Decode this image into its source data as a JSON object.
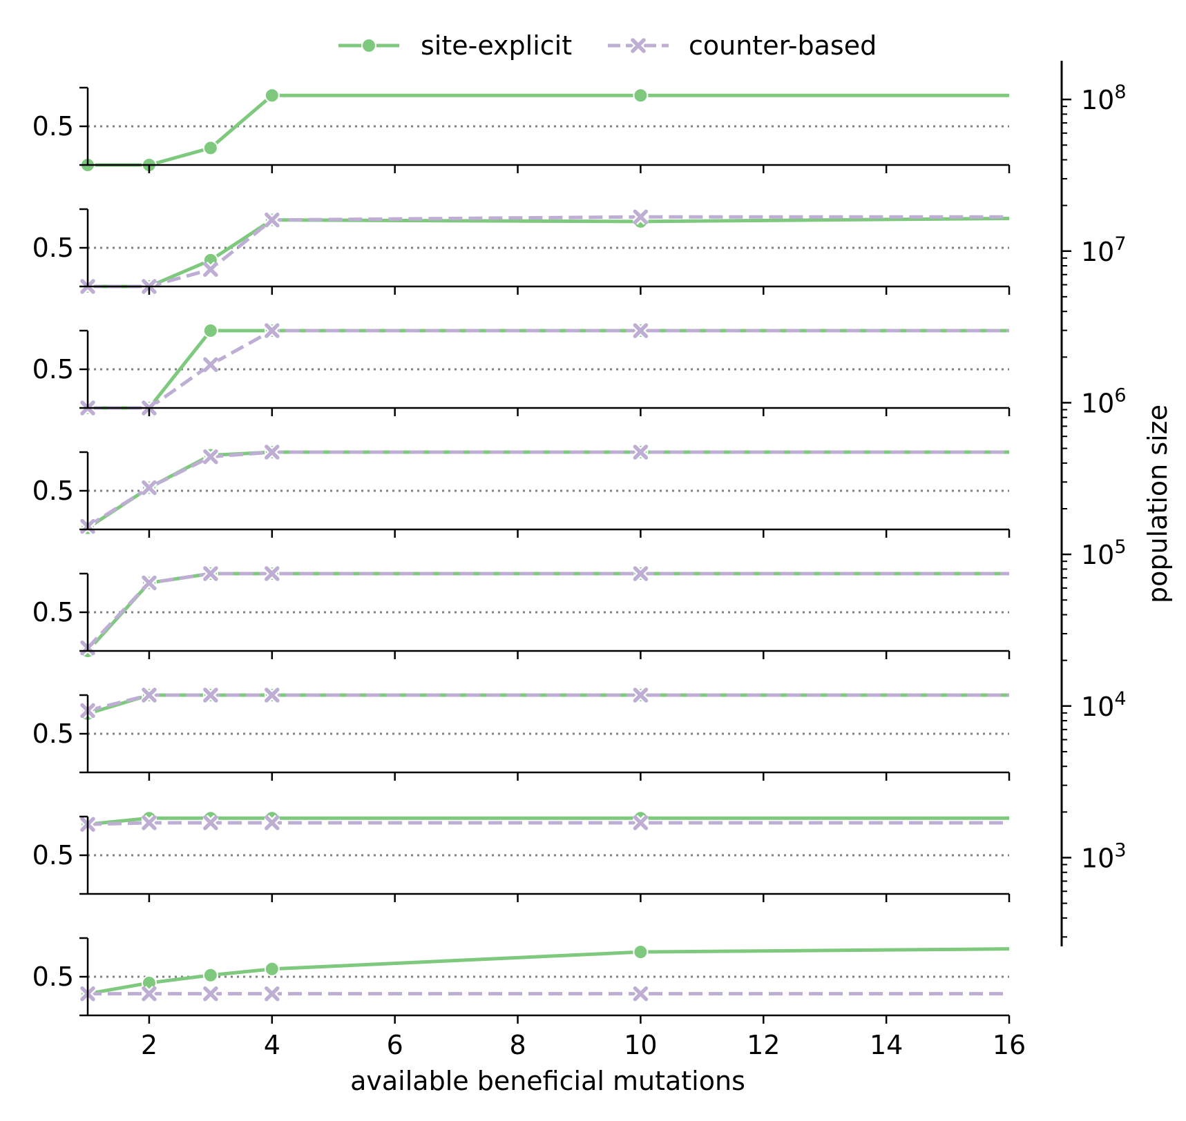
{
  "chart_data": {
    "type": "line",
    "legend": {
      "placement": "top-center",
      "entries": [
        {
          "label": "site-explicit",
          "color": "#7fc97f",
          "marker": "circle",
          "dash": "solid"
        },
        {
          "label": "counter-based",
          "color": "#beaed4",
          "marker": "x",
          "dash": "dashed"
        }
      ]
    },
    "xlabel": "available beneficial mutations",
    "x_ticks": [
      2,
      4,
      6,
      8,
      10,
      12,
      14,
      16
    ],
    "x_tick_labels": [
      "2",
      "4",
      "6",
      "8",
      10,
      12,
      14,
      16
    ],
    "xlim": [
      1,
      16
    ],
    "panel_ylim": [
      0.25,
      0.75
    ],
    "panel_ytick": 0.5,
    "panel_ytick_label": "0.5",
    "reference_line": 0.5,
    "x": [
      1,
      2,
      3,
      4,
      10,
      16
    ],
    "panels": [
      {
        "series": [
          {
            "name": "site-explicit",
            "values": [
              0.25,
              0.25,
              0.36,
              0.7,
              0.7,
              0.7
            ],
            "markers": [
              true,
              true,
              true,
              true,
              true,
              false
            ]
          },
          {
            "name": "counter-based",
            "values": [],
            "markers": []
          }
        ]
      },
      {
        "series": [
          {
            "name": "site-explicit",
            "values": [
              0.25,
              0.25,
              0.42,
              0.68,
              0.67,
              0.69
            ],
            "markers": [
              true,
              true,
              true,
              true,
              true,
              false
            ]
          },
          {
            "name": "counter-based",
            "values": [
              0.25,
              0.25,
              0.36,
              0.68,
              0.7,
              0.7
            ],
            "markers": [
              true,
              true,
              true,
              true,
              true,
              false
            ]
          }
        ]
      },
      {
        "series": [
          {
            "name": "site-explicit",
            "values": [
              0.25,
              0.25,
              0.75,
              0.75,
              0.75,
              0.75
            ],
            "markers": [
              true,
              true,
              true,
              true,
              true,
              false
            ]
          },
          {
            "name": "counter-based",
            "values": [
              0.25,
              0.25,
              0.53,
              0.75,
              0.75,
              0.75
            ],
            "markers": [
              true,
              true,
              true,
              true,
              true,
              false
            ]
          }
        ]
      },
      {
        "series": [
          {
            "name": "site-explicit",
            "values": [
              0.26,
              0.52,
              0.73,
              0.75,
              0.75,
              0.75
            ],
            "markers": [
              true,
              true,
              true,
              true,
              true,
              false
            ]
          },
          {
            "name": "counter-based",
            "values": [
              0.27,
              0.52,
              0.72,
              0.75,
              0.75,
              0.75
            ],
            "markers": [
              true,
              true,
              true,
              true,
              true,
              false
            ]
          }
        ]
      },
      {
        "series": [
          {
            "name": "site-explicit",
            "values": [
              0.25,
              0.69,
              0.75,
              0.75,
              0.75,
              0.75
            ],
            "markers": [
              true,
              true,
              true,
              true,
              true,
              false
            ]
          },
          {
            "name": "counter-based",
            "values": [
              0.27,
              0.69,
              0.75,
              0.75,
              0.75,
              0.75
            ],
            "markers": [
              true,
              true,
              true,
              true,
              true,
              false
            ]
          }
        ]
      },
      {
        "series": [
          {
            "name": "site-explicit",
            "values": [
              0.63,
              0.75,
              0.75,
              0.75,
              0.75,
              0.75
            ],
            "markers": [
              true,
              true,
              true,
              true,
              true,
              false
            ]
          },
          {
            "name": "counter-based",
            "values": [
              0.65,
              0.75,
              0.75,
              0.75,
              0.75,
              0.75
            ],
            "markers": [
              true,
              true,
              true,
              true,
              true,
              false
            ]
          }
        ]
      },
      {
        "series": [
          {
            "name": "site-explicit",
            "values": [
              0.7,
              0.74,
              0.74,
              0.74,
              0.74,
              0.74
            ],
            "markers": [
              true,
              true,
              true,
              true,
              true,
              false
            ]
          },
          {
            "name": "counter-based",
            "values": [
              0.7,
              0.71,
              0.71,
              0.71,
              0.71,
              0.71
            ],
            "markers": [
              true,
              true,
              true,
              true,
              true,
              false
            ]
          }
        ]
      },
      {
        "series": [
          {
            "name": "site-explicit",
            "values": [
              0.39,
              0.46,
              0.51,
              0.55,
              0.66,
              0.68
            ],
            "markers": [
              true,
              true,
              true,
              true,
              true,
              false
            ]
          },
          {
            "name": "counter-based",
            "values": [
              0.39,
              0.39,
              0.39,
              0.39,
              0.39,
              0.39
            ],
            "markers": [
              true,
              true,
              true,
              true,
              true,
              false
            ]
          }
        ]
      }
    ],
    "colorbar": {
      "label": "population size",
      "scale": "log",
      "range": [
        260,
        180000000
      ],
      "major_ticks": [
        1000,
        10000,
        100000,
        1000000,
        10000000,
        100000000
      ],
      "major_tick_labels": [
        {
          "base": "10",
          "exp": "3"
        },
        {
          "base": "10",
          "exp": "4"
        },
        {
          "base": "10",
          "exp": "5"
        },
        {
          "base": "10",
          "exp": "6"
        },
        {
          "base": "10",
          "exp": "7"
        },
        {
          "base": "10",
          "exp": "8"
        }
      ]
    }
  }
}
